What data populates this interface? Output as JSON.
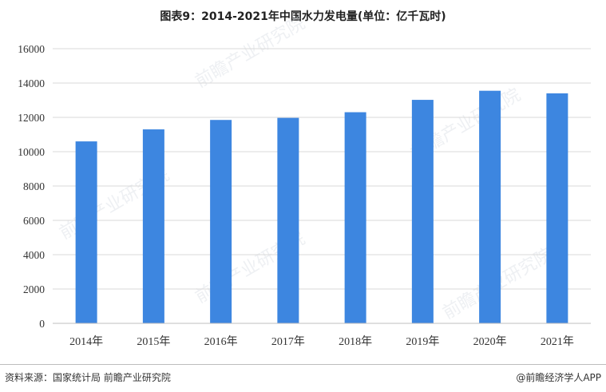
{
  "title": "图表9：2014-2021年中国水力发电量(单位：亿千瓦时)",
  "footer": {
    "source": "资料来源：国家统计局 前瞻产业研究院",
    "brand": "@前瞻经济学人APP"
  },
  "watermark": "前瞻产业研究院",
  "chart_data": {
    "type": "bar",
    "categories": [
      "2014年",
      "2015年",
      "2016年",
      "2017年",
      "2018年",
      "2019年",
      "2020年",
      "2021年"
    ],
    "values": [
      10600,
      11300,
      11850,
      11970,
      12300,
      13020,
      13550,
      13400
    ],
    "title": "图表9：2014-2021年中国水力发电量(单位：亿千瓦时)",
    "xlabel": "",
    "ylabel": "",
    "ylim": [
      0,
      16000
    ],
    "yticks": [
      0,
      2000,
      4000,
      6000,
      8000,
      10000,
      12000,
      14000,
      16000
    ],
    "grid": true,
    "legend": "none",
    "bar_color": "#3d86e0",
    "grid_color": "#d9d9d9"
  }
}
